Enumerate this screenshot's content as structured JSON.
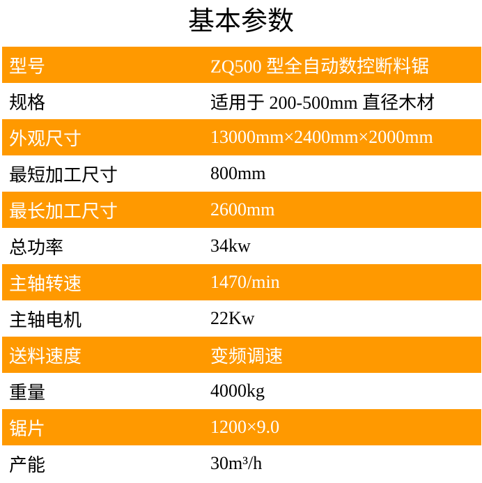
{
  "title": "基本参数",
  "accent": "#FF9900",
  "rows": [
    {
      "label": "型号",
      "value": "ZQ500 型全自动数控断料锯"
    },
    {
      "label": "规格",
      "value": "适用于 200-500mm 直径木材"
    },
    {
      "label": "外观尺寸",
      "value": "13000mm×2400mm×2000mm"
    },
    {
      "label": "最短加工尺寸",
      "value": "800mm"
    },
    {
      "label": "最长加工尺寸",
      "value": "2600mm"
    },
    {
      "label": "总功率",
      "value": "34kw"
    },
    {
      "label": "主轴转速",
      "value": "1470/min"
    },
    {
      "label": "主轴电机",
      "value": "22Kw"
    },
    {
      "label": "送料速度",
      "value": "变频调速"
    },
    {
      "label": "重量",
      "value": "4000kg"
    },
    {
      "label": "锯片",
      "value": "1200×9.0"
    },
    {
      "label": "产能",
      "value": "30m³/h"
    }
  ]
}
